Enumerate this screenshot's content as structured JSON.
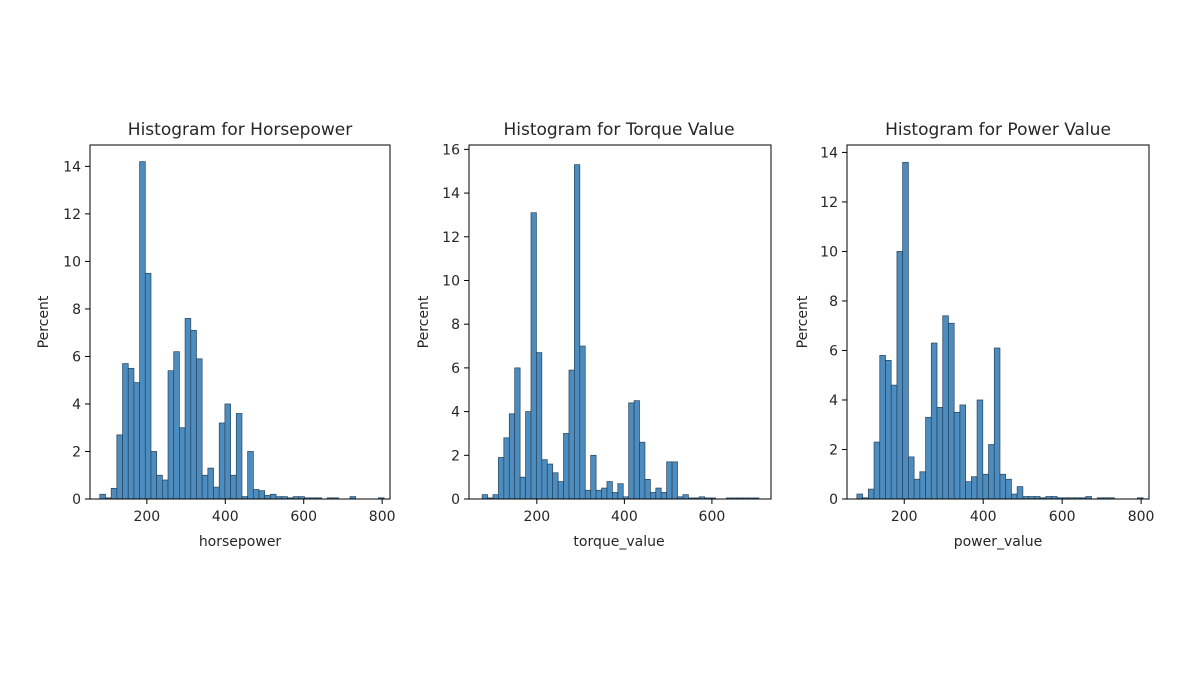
{
  "chart_data": [
    {
      "type": "bar",
      "title": "Histogram for Horsepower",
      "xlabel": "horsepower",
      "ylabel": "Percent",
      "xlim": [
        55,
        820
      ],
      "ylim": [
        0,
        14.9
      ],
      "xticks": [
        200,
        400,
        600,
        800
      ],
      "yticks": [
        0,
        2,
        4,
        6,
        8,
        10,
        12,
        14
      ],
      "bin_width": 14.5,
      "bin_starts": [
        80,
        94.5,
        109,
        123.5,
        138,
        152.5,
        167,
        181.5,
        196,
        210.5,
        225,
        239.5,
        254,
        268.5,
        283,
        297.5,
        312,
        326.5,
        341,
        355.5,
        370,
        384.5,
        399,
        413.5,
        428,
        442.5,
        457,
        471.5,
        486,
        500.5,
        515,
        529.5,
        544,
        558.5,
        573,
        587.5,
        602,
        616.5,
        631,
        645.5,
        660,
        674.5,
        689,
        703.5,
        718,
        732.5,
        747,
        761.5,
        776,
        790.5
      ],
      "values": [
        0.2,
        0.05,
        0.45,
        2.7,
        5.7,
        5.5,
        4.9,
        14.2,
        9.5,
        2.0,
        1.0,
        0.8,
        5.4,
        6.2,
        3.0,
        7.6,
        7.1,
        5.9,
        1.0,
        1.3,
        0.5,
        3.2,
        4.0,
        1.0,
        3.6,
        0.1,
        2.0,
        0.4,
        0.35,
        0.15,
        0.2,
        0.1,
        0.1,
        0.05,
        0.1,
        0.1,
        0.05,
        0.05,
        0.05,
        0,
        0.05,
        0.05,
        0,
        0,
        0.1,
        0,
        0,
        0,
        0,
        0.05
      ],
      "bar_color": "#4c8cbf",
      "edge_color": "#27435a",
      "grid": false
    },
    {
      "type": "bar",
      "title": "Histogram for Torque Value",
      "xlabel": "torque_value",
      "ylabel": "Percent",
      "xlim": [
        45,
        735
      ],
      "ylim": [
        0,
        16.2
      ],
      "xticks": [
        200,
        400,
        600
      ],
      "yticks": [
        0,
        2,
        4,
        6,
        8,
        10,
        12,
        14,
        16
      ],
      "bin_width": 12.4,
      "bin_starts": [
        75,
        87.4,
        99.8,
        112.2,
        124.6,
        137,
        149.4,
        161.8,
        174.2,
        186.6,
        199,
        211.4,
        223.8,
        236.2,
        248.6,
        261,
        273.4,
        285.8,
        298.2,
        310.6,
        323,
        335.4,
        347.8,
        360.2,
        372.6,
        385,
        397.4,
        409.8,
        422.2,
        434.6,
        447,
        459.4,
        471.8,
        484.2,
        496.6,
        509,
        521.4,
        533.8,
        546.2,
        558.6,
        571,
        583.4,
        595.8,
        608.2,
        620.6,
        633,
        645.4,
        657.8,
        670.2,
        682.6,
        695
      ],
      "values": [
        0.2,
        0.05,
        0.2,
        1.9,
        2.8,
        3.9,
        6.0,
        1.0,
        4.0,
        13.1,
        6.7,
        1.8,
        1.6,
        1.2,
        0.8,
        3.0,
        5.9,
        15.3,
        7.0,
        0.4,
        2.0,
        0.4,
        0.5,
        0.8,
        0.3,
        0.7,
        0.1,
        4.4,
        4.5,
        2.6,
        0.9,
        0.3,
        0.5,
        0.3,
        1.7,
        1.7,
        0.1,
        0.2,
        0.05,
        0.05,
        0.1,
        0.05,
        0.05,
        0,
        0,
        0.05,
        0.05,
        0.05,
        0.05,
        0.05,
        0.05
      ],
      "bar_color": "#4c8cbf",
      "edge_color": "#27435a",
      "grid": false
    },
    {
      "type": "bar",
      "title": "Histogram for Power Value",
      "xlabel": "power_value",
      "ylabel": "Percent",
      "xlim": [
        55,
        820
      ],
      "ylim": [
        0,
        14.3
      ],
      "xticks": [
        200,
        400,
        600,
        800
      ],
      "yticks": [
        0,
        2,
        4,
        6,
        8,
        10,
        12,
        14
      ],
      "bin_width": 14.5,
      "bin_starts": [
        80,
        94.5,
        109,
        123.5,
        138,
        152.5,
        167,
        181.5,
        196,
        210.5,
        225,
        239.5,
        254,
        268.5,
        283,
        297.5,
        312,
        326.5,
        341,
        355.5,
        370,
        384.5,
        399,
        413.5,
        428,
        442.5,
        457,
        471.5,
        486,
        500.5,
        515,
        529.5,
        544,
        558.5,
        573,
        587.5,
        602,
        616.5,
        631,
        645.5,
        660,
        674.5,
        689,
        703.5,
        718,
        732.5,
        747,
        761.5,
        776,
        790.5
      ],
      "values": [
        0.2,
        0.05,
        0.4,
        2.3,
        5.8,
        5.6,
        4.6,
        10.0,
        13.6,
        1.7,
        0.8,
        1.1,
        3.3,
        6.3,
        3.7,
        7.4,
        7.1,
        3.5,
        3.8,
        0.7,
        0.9,
        4.0,
        1.0,
        2.2,
        6.1,
        1.0,
        0.8,
        0.2,
        0.5,
        0.1,
        0.1,
        0.1,
        0.05,
        0.1,
        0.1,
        0.05,
        0.05,
        0.05,
        0.05,
        0.05,
        0.1,
        0,
        0.05,
        0.05,
        0.05,
        0,
        0,
        0,
        0,
        0.05
      ],
      "bar_color": "#4c8cbf",
      "edge_color": "#27435a",
      "grid": false
    }
  ]
}
